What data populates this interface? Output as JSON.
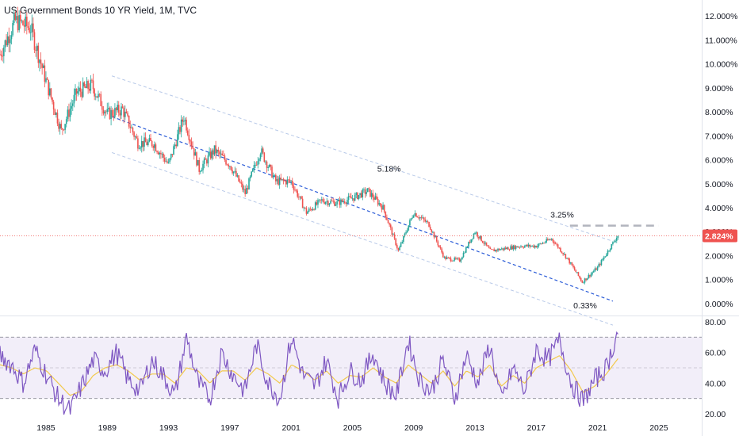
{
  "chart_title": "US Government Bonds 10 YR Yield, 1M, TVC",
  "colors": {
    "up": "#26a69a",
    "down": "#ef5350",
    "trend_mid": "#2a5bd7",
    "trend_outer": "#b8c9e8",
    "rsi_line": "#7e57c2",
    "rsi_ma": "#f2c94c",
    "rsi_band": "#7e57c2",
    "price_line": "#ef5350",
    "price_badge": "#ef5350",
    "resistance": "#b2b5be"
  },
  "chart_data": [
    {
      "type": "candlestick",
      "title": "US Government Bonds 10 YR Yield, 1M, TVC",
      "y_unit": "%",
      "y_ticks": [
        "12.000%",
        "11.000%",
        "10.000%",
        "9.000%",
        "8.000%",
        "7.000%",
        "6.000%",
        "5.000%",
        "4.000%",
        "3.000%",
        "2.000%",
        "1.000%",
        "0.000%"
      ],
      "y_tick_values": [
        12,
        11,
        10,
        9,
        8,
        7,
        6,
        5,
        4,
        3,
        2,
        1,
        0
      ],
      "ylim": [
        -0.4,
        12.6
      ],
      "x_ticks": [
        "1985",
        "1989",
        "1993",
        "1997",
        "2001",
        "2005",
        "2009",
        "2013",
        "2017",
        "2021",
        "2025"
      ],
      "xlim": [
        1982.0,
        2027.8
      ],
      "yearly_close_approx": {
        "years": [
          1982,
          1983,
          1984,
          1985,
          1986,
          1987,
          1988,
          1989,
          1990,
          1991,
          1992,
          1993,
          1994,
          1995,
          1996,
          1997,
          1998,
          1999,
          2000,
          2001,
          2002,
          2003,
          2004,
          2005,
          2006,
          2007,
          2008,
          2009,
          2010,
          2011,
          2012,
          2013,
          2014,
          2015,
          2016,
          2017,
          2018,
          2019,
          2020,
          2021,
          2022.3
        ],
        "values": [
          10.4,
          11.8,
          11.5,
          9.3,
          7.2,
          8.8,
          9.1,
          7.9,
          8.1,
          6.7,
          6.7,
          5.8,
          7.8,
          5.6,
          6.4,
          5.8,
          4.6,
          6.4,
          5.1,
          5.1,
          3.8,
          4.3,
          4.2,
          4.4,
          4.7,
          4.0,
          2.2,
          3.8,
          3.3,
          1.9,
          1.8,
          3.0,
          2.2,
          2.3,
          2.4,
          2.4,
          2.7,
          1.9,
          0.9,
          1.5,
          2.824
        ]
      },
      "last_price_label": "2.824%",
      "last_price": 2.824,
      "annotations": [
        {
          "text": "5.18%",
          "x": 2007.5,
          "y": 5.18
        },
        {
          "text": "3.25%",
          "x": 2018.8,
          "y": 3.25
        },
        {
          "text": "0.33%",
          "x": 2020.3,
          "y": 0.33
        }
      ],
      "resistance_level": {
        "value": 3.25,
        "x_start": 2019.2,
        "x_end": 2025.0
      },
      "channel": {
        "mid": {
          "x": [
            1989.3,
            2022.0
          ],
          "y": [
            7.8,
            0.1
          ]
        },
        "upper": {
          "x": [
            1989.3,
            2022.0
          ],
          "y": [
            9.5,
            2.6
          ]
        },
        "lower": {
          "x": [
            1989.3,
            2022.0
          ],
          "y": [
            6.3,
            -0.9
          ]
        }
      },
      "grid": false
    },
    {
      "type": "line",
      "title": "RSI",
      "y_ticks": [
        "80.00",
        "60.00",
        "40.00",
        "20.00"
      ],
      "y_tick_values": [
        80,
        60,
        40,
        20
      ],
      "ylim": [
        18,
        82
      ],
      "band": [
        30,
        70
      ],
      "midline": 50,
      "x_ticks": [
        "1985",
        "1989",
        "1993",
        "1997",
        "2001",
        "2005",
        "2009",
        "2013",
        "2017",
        "2021",
        "2025"
      ],
      "series": [
        {
          "values_approx": [
            58,
            52,
            40,
            62,
            45,
            30,
            22,
            38,
            55,
            48,
            60,
            42,
            35,
            55,
            45,
            32,
            70,
            40,
            30,
            60,
            45,
            35,
            65,
            40,
            30,
            70,
            45,
            38,
            55,
            30,
            48,
            42,
            60,
            40,
            32,
            68,
            42,
            35,
            55,
            30,
            58,
            40,
            65,
            28,
            50,
            35,
            62,
            55,
            68,
            40,
            28,
            42,
            50,
            74
          ]
        },
        {
          "values_approx": [
            52,
            50,
            46,
            50,
            48,
            40,
            32,
            35,
            45,
            50,
            52,
            48,
            42,
            46,
            46,
            40,
            50,
            48,
            40,
            48,
            48,
            42,
            50,
            46,
            40,
            52,
            48,
            42,
            48,
            40,
            45,
            44,
            50,
            44,
            40,
            52,
            46,
            40,
            48,
            38,
            48,
            44,
            52,
            38,
            45,
            40,
            50,
            54,
            58,
            48,
            34,
            38,
            46,
            56
          ]
        }
      ]
    }
  ]
}
